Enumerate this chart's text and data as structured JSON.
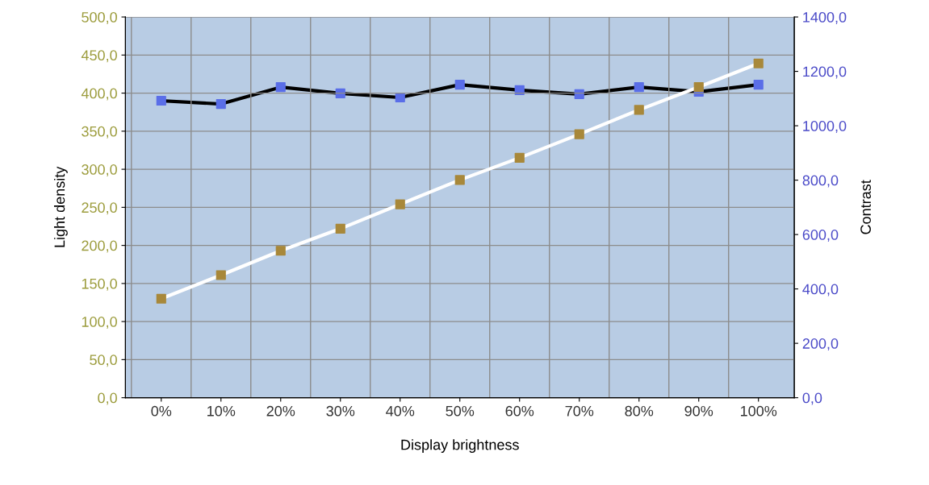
{
  "chart_data": {
    "type": "line",
    "xlabel": "Display brightness",
    "ylabel": "Light density",
    "y2label": "Contrast",
    "categories": [
      "0%",
      "10%",
      "20%",
      "30%",
      "40%",
      "50%",
      "60%",
      "70%",
      "80%",
      "90%",
      "100%"
    ],
    "series": [
      {
        "color": "#ffffff",
        "colors": [
          "#a8883a",
          "#a8883a",
          "#a8883a",
          "#a8883a",
          "#a8883a",
          "#a8883a",
          "#a8883a",
          "#a8883a",
          "#a8883a",
          "#a8883a",
          "#a8883a"
        ],
        "axis": "y",
        "values": [
          130,
          161,
          193,
          222,
          254,
          286,
          315,
          346,
          378,
          408,
          439
        ]
      },
      {
        "color": "#000000",
        "colors": [
          "#5a6ee8",
          "#5a6ee8",
          "#5a6ee8",
          "#5a6ee8",
          "#5a6ee8",
          "#5a6ee8",
          "#5a6ee8",
          "#5a6ee8",
          "#5a6ee8",
          "#5a6ee8",
          "#5a6ee8"
        ],
        "axis": "y2",
        "values": [
          1092,
          1080,
          1142,
          1119,
          1104,
          1151,
          1131,
          1116,
          1142,
          1125,
          1151
        ]
      }
    ],
    "ylim": [
      0,
      500
    ],
    "yticks": [
      {
        "value": 0,
        "label": "0,0"
      },
      {
        "value": 50,
        "label": "50,0"
      },
      {
        "value": 100,
        "label": "100,0"
      },
      {
        "value": 150,
        "label": "150,0"
      },
      {
        "value": 200,
        "label": "200,0"
      },
      {
        "value": 250,
        "label": "250,0"
      },
      {
        "value": 300,
        "label": "300,0"
      },
      {
        "value": 350,
        "label": "350,0"
      },
      {
        "value": 400,
        "label": "400,0"
      },
      {
        "value": 450,
        "label": "450,0"
      },
      {
        "value": 500,
        "label": "500,0"
      }
    ],
    "y2lim": [
      0,
      1400
    ],
    "y2ticks": [
      {
        "value": 0,
        "label": "0,0"
      },
      {
        "value": 200,
        "label": "200,0"
      },
      {
        "value": 400,
        "label": "400,0"
      },
      {
        "value": 600,
        "label": "600,0"
      },
      {
        "value": 800,
        "label": "800,0"
      },
      {
        "value": 1000,
        "label": "1000,0"
      },
      {
        "value": 1200,
        "label": "1200,0"
      },
      {
        "value": 1400,
        "label": "1400,0"
      }
    ],
    "grid": true,
    "marker": "square",
    "line_style": "solid",
    "legend": false
  }
}
